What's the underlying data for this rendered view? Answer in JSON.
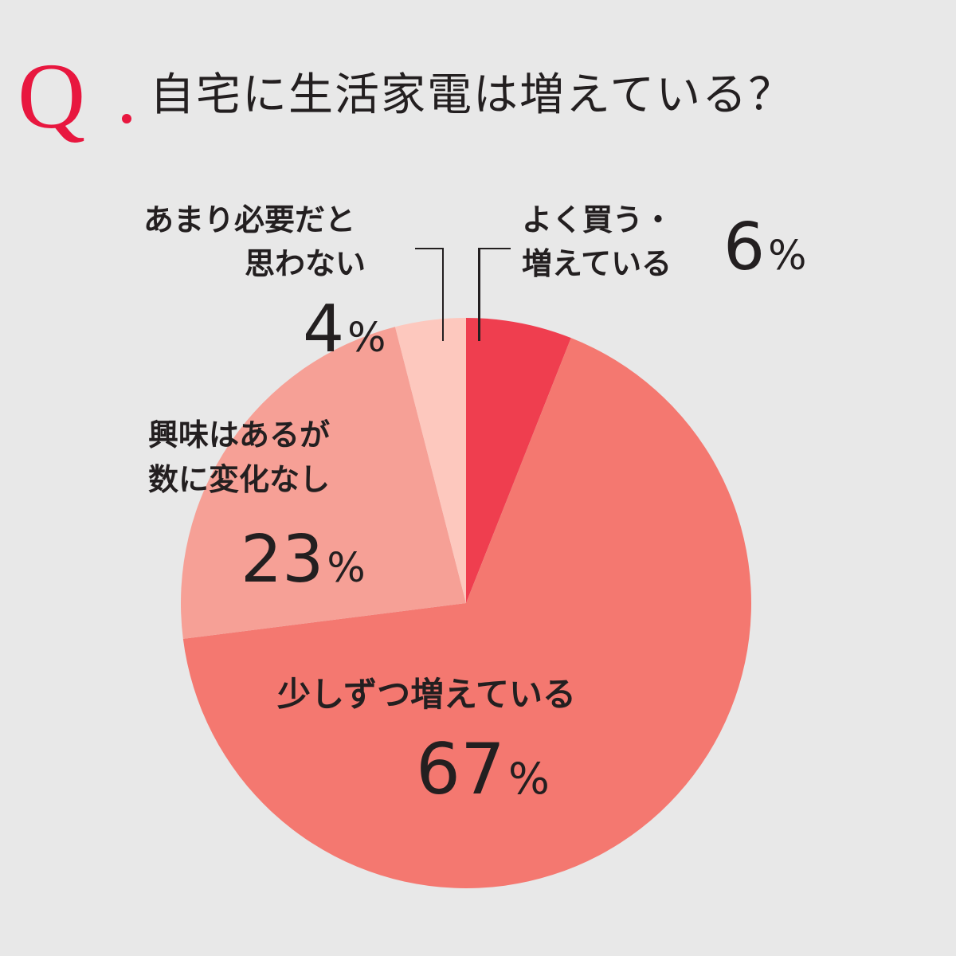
{
  "header": {
    "q_mark": "Q",
    "title": "自宅に生活家電は増えている？"
  },
  "chart_data": {
    "type": "pie",
    "title": "自宅に生活家電は増えている？",
    "start_angle_deg": 0,
    "direction": "clockwise",
    "slices": [
      {
        "label": "よく買う・増えている",
        "value": 6,
        "color": "#EF3E4F"
      },
      {
        "label": "少しずつ増えている",
        "value": 67,
        "color": "#F47870"
      },
      {
        "label": "興味はあるが数に変化なし",
        "value": 23,
        "color": "#F6A096"
      },
      {
        "label": "あまり必要だと思わない",
        "value": 4,
        "color": "#FDC8BE"
      }
    ]
  },
  "labels": {
    "s1": {
      "line1": "よく買う・",
      "line2": "増えている",
      "num": "6",
      "sym": "%"
    },
    "s2": {
      "line1": "少しずつ増えている",
      "num": "67",
      "sym": "%"
    },
    "s3": {
      "line1": "興味はあるが",
      "line2": "数に変化なし",
      "num": "23",
      "sym": "%"
    },
    "s4": {
      "line1": "あまり必要だと",
      "line2": "思わない",
      "num": "4",
      "sym": "%"
    }
  },
  "colors": {
    "background": "#E8E8E8",
    "accent": "#E8173F",
    "text": "#231F20"
  }
}
